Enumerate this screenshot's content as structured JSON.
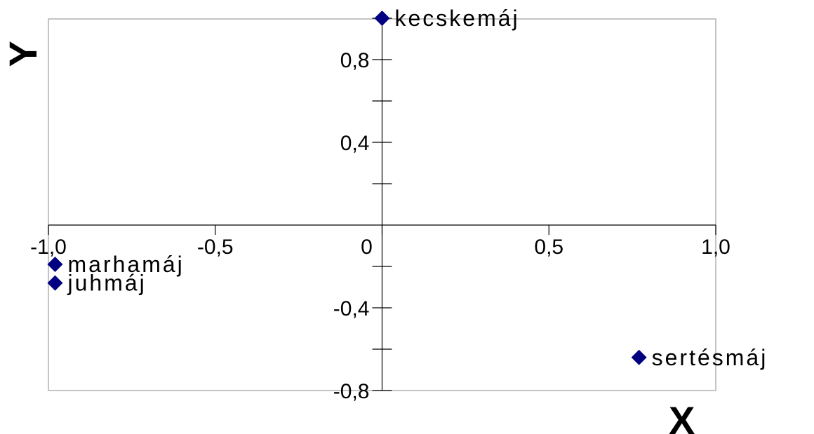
{
  "chart_data": {
    "type": "scatter",
    "xlabel": "X",
    "ylabel": "Y",
    "xlim": [
      -1.0,
      1.0
    ],
    "ylim": [
      -0.8,
      1.0
    ],
    "x_ticks": [
      {
        "value": -1.0,
        "label": "-1,0"
      },
      {
        "value": -0.5,
        "label": "-0,5"
      },
      {
        "value": 0.0,
        "label": "0"
      },
      {
        "value": 0.5,
        "label": "0,5"
      },
      {
        "value": 1.0,
        "label": "1,0"
      }
    ],
    "y_ticks": [
      {
        "value": 0.8,
        "label": "0,8"
      },
      {
        "value": 0.4,
        "label": "0,4"
      },
      {
        "value": -0.4,
        "label": "-0,4"
      },
      {
        "value": -0.8,
        "label": "-0,8"
      }
    ],
    "points": [
      {
        "label": "kecskemáj",
        "x": 0.0,
        "y": 1.0
      },
      {
        "label": "marhamáj",
        "x": -0.98,
        "y": -0.19
      },
      {
        "label": "juhmáj",
        "x": -0.98,
        "y": -0.28
      },
      {
        "label": "sertésmáj",
        "x": 0.77,
        "y": -0.64
      }
    ],
    "marker_color": "#000080",
    "grid": false
  }
}
